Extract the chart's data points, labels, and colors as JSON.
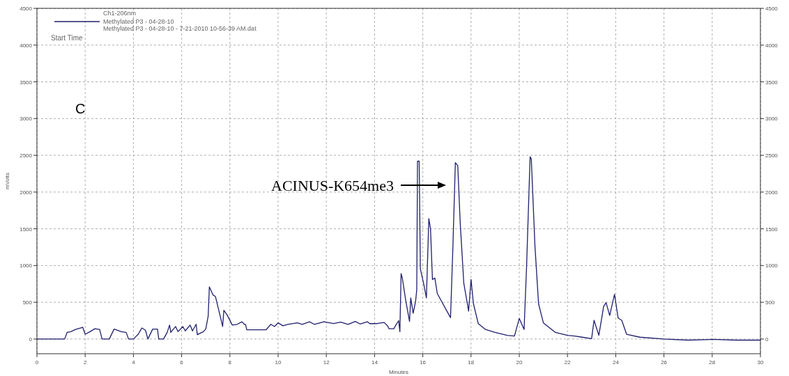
{
  "chart_data": {
    "type": "line",
    "xlabel": "Minutes",
    "ylabel": "mVolts",
    "legend_title": "Ch1-206nm",
    "legend": "top left",
    "grid": true,
    "line_style": "solid",
    "marker": "none",
    "xlim": [
      0,
      30
    ],
    "xticks": [
      0,
      2,
      4,
      6,
      8,
      10,
      12,
      14,
      16,
      18,
      20,
      22,
      24,
      26,
      28,
      30
    ],
    "ylim": [
      -200,
      4500
    ],
    "yticks": [
      0,
      500,
      1000,
      1500,
      2000,
      2500,
      3000,
      3500,
      4000,
      4500
    ],
    "y2lim": [
      -200,
      4500
    ],
    "y2ticks": [
      0,
      500,
      1000,
      1500,
      2000,
      2500,
      3000,
      3500,
      4000,
      4500
    ],
    "annotations": [
      "Methylated P3 - 04-28-10 - 7-21-2010 10-56-39 AM.dat",
      "Start Time",
      "C",
      "ACINUS-K654me3"
    ],
    "series": [
      {
        "name": "Methylated P3 - 04-28-10",
        "color": "#1f1f6e",
        "x": [
          0,
          1.0,
          1.15,
          1.25,
          1.4,
          1.6,
          1.9,
          2.0,
          2.2,
          2.4,
          2.6,
          2.7,
          3.0,
          3.2,
          3.5,
          3.7,
          3.8,
          4.0,
          4.2,
          4.35,
          4.5,
          4.6,
          4.8,
          5.0,
          5.05,
          5.25,
          5.4,
          5.5,
          5.55,
          5.75,
          5.85,
          6.05,
          6.15,
          6.35,
          6.45,
          6.6,
          6.65,
          6.9,
          7.0,
          7.1,
          7.15,
          7.3,
          7.4,
          7.6,
          7.7,
          7.75,
          7.9,
          8.1,
          8.3,
          8.5,
          8.6,
          8.65,
          8.7,
          9.5,
          9.7,
          9.85,
          10.0,
          10.2,
          10.4,
          10.8,
          11.0,
          11.3,
          11.5,
          11.9,
          12.3,
          12.6,
          12.9,
          13.2,
          13.4,
          13.7,
          13.8,
          14.1,
          14.4,
          14.55,
          14.6,
          14.8,
          14.9,
          15.0,
          15.05,
          15.1,
          15.15,
          15.3,
          15.45,
          15.5,
          15.6,
          15.7,
          15.75,
          15.78,
          15.85,
          15.9,
          16.05,
          16.15,
          16.25,
          16.32,
          16.4,
          16.5,
          16.6,
          17.1,
          17.15,
          17.25,
          17.35,
          17.45,
          17.55,
          17.7,
          17.9,
          18.0,
          18.1,
          18.3,
          18.6,
          19.0,
          19.5,
          19.8,
          20.0,
          20.2,
          20.3,
          20.45,
          20.5,
          20.65,
          20.8,
          21.0,
          21.5,
          22.0,
          22.3,
          22.6,
          23.0,
          23.1,
          23.3,
          23.5,
          23.6,
          23.75,
          23.95,
          24.1,
          24.25,
          24.45,
          25.0,
          26.0,
          27.0,
          28.0,
          29.0,
          30.0
        ],
        "values": [
          0,
          0,
          0,
          90,
          100,
          130,
          160,
          65,
          100,
          140,
          130,
          0,
          0,
          135,
          100,
          90,
          0,
          0,
          65,
          150,
          120,
          0,
          135,
          135,
          0,
          0,
          90,
          190,
          90,
          170,
          100,
          170,
          110,
          190,
          110,
          200,
          60,
          100,
          135,
          310,
          710,
          600,
          580,
          310,
          170,
          390,
          320,
          190,
          200,
          235,
          200,
          200,
          125,
          125,
          200,
          170,
          220,
          180,
          200,
          220,
          200,
          235,
          200,
          235,
          210,
          230,
          200,
          240,
          205,
          235,
          210,
          210,
          225,
          175,
          140,
          140,
          200,
          250,
          100,
          890,
          830,
          510,
          240,
          560,
          350,
          510,
          670,
          2420,
          2420,
          955,
          730,
          560,
          1640,
          1500,
          810,
          830,
          620,
          320,
          290,
          1270,
          2400,
          2360,
          1590,
          760,
          380,
          810,
          480,
          210,
          130,
          90,
          50,
          40,
          280,
          130,
          955,
          2480,
          2450,
          1270,
          480,
          220,
          90,
          50,
          40,
          25,
          5,
          255,
          50,
          445,
          495,
          320,
          610,
          285,
          255,
          65,
          25,
          0,
          -15,
          -5,
          -15,
          -15
        ]
      }
    ]
  }
}
